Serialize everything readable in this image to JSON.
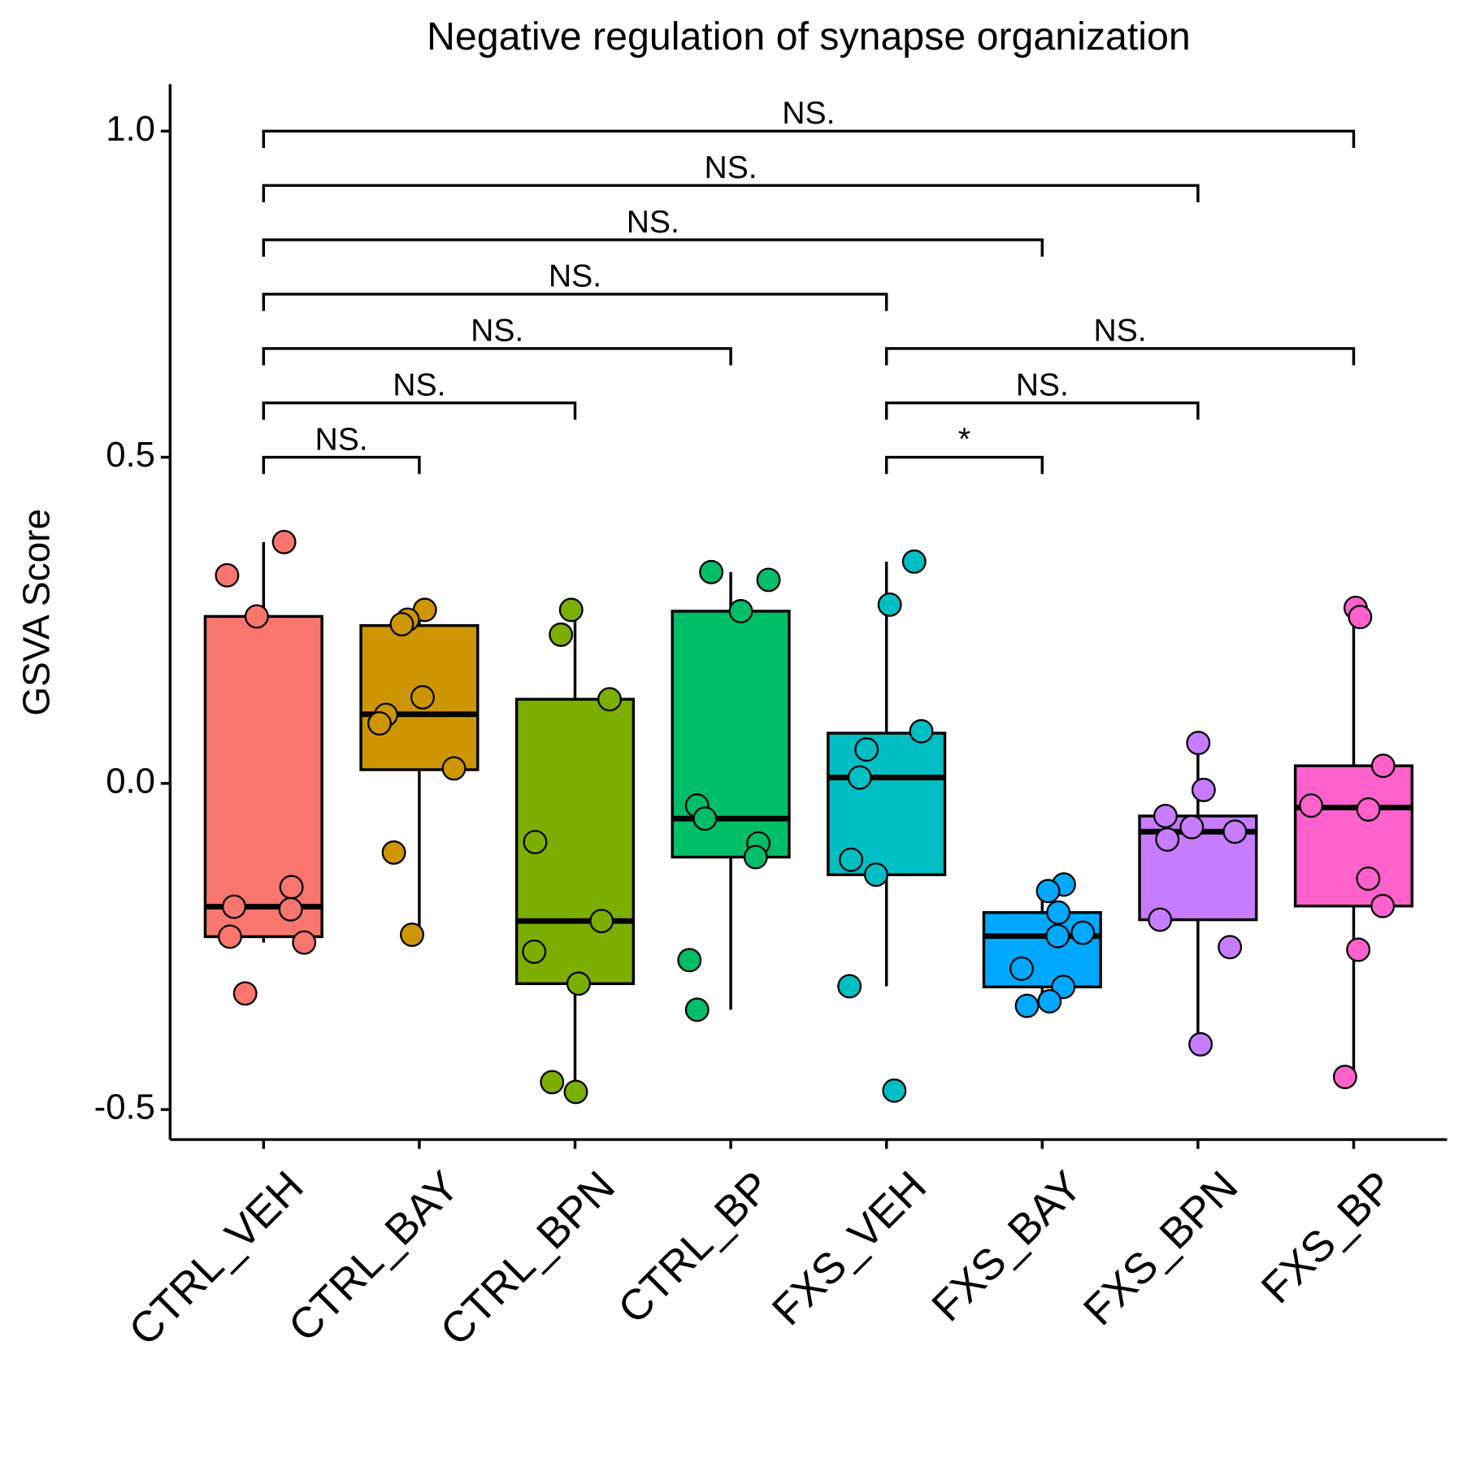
{
  "chart_data": {
    "type": "box",
    "title": "Negative regulation of synapse organization",
    "y_label": "GSVA Score",
    "categories": [
      "CTRL_VEH",
      "CTRL_BAY",
      "CTRL_BPN",
      "CTRL_BP",
      "FXS_VEH",
      "FXS_BAY",
      "FXS_BPN",
      "FXS_BP"
    ],
    "colors": [
      "#F8766D",
      "#CD9600",
      "#7CAE00",
      "#00BE67",
      "#00BFC4",
      "#00A9FF",
      "#C77CFF",
      "#FF61CC"
    ],
    "boxes": [
      {
        "whisker_low": -0.244,
        "q1": -0.235,
        "median": -0.189,
        "q3": 0.256,
        "whisker_high": 0.37
      },
      {
        "whisker_low": -0.232,
        "q1": 0.021,
        "median": 0.106,
        "q3": 0.242,
        "whisker_high": 0.262
      },
      {
        "whisker_low": -0.473,
        "q1": -0.307,
        "median": -0.211,
        "q3": 0.129,
        "whisker_high": 0.266
      },
      {
        "whisker_low": -0.347,
        "q1": -0.113,
        "median": -0.054,
        "q3": 0.264,
        "whisker_high": 0.324
      },
      {
        "whisker_low": -0.311,
        "q1": -0.14,
        "median": 0.009,
        "q3": 0.077,
        "whisker_high": 0.34
      },
      {
        "whisker_low": -0.34,
        "q1": -0.312,
        "median": -0.234,
        "q3": -0.198,
        "whisker_high": -0.155
      },
      {
        "whisker_low": -0.4,
        "q1": -0.209,
        "median": -0.074,
        "q3": -0.05,
        "whisker_high": 0.062
      },
      {
        "whisker_low": -0.45,
        "q1": -0.188,
        "median": -0.037,
        "q3": 0.027,
        "whisker_high": 0.269
      }
    ],
    "points": [
      [
        0.37,
        0.319,
        0.256,
        -0.159,
        -0.189,
        -0.193,
        -0.235,
        -0.244,
        -0.322
      ],
      [
        0.266,
        0.251,
        0.244,
        0.132,
        0.105,
        0.092,
        0.023,
        -0.106,
        -0.232
      ],
      [
        0.266,
        0.228,
        0.129,
        -0.09,
        -0.211,
        -0.258,
        -0.307,
        -0.458,
        -0.473
      ],
      [
        0.324,
        0.312,
        0.264,
        -0.034,
        -0.054,
        -0.092,
        -0.113,
        -0.271,
        -0.347
      ],
      [
        0.34,
        0.274,
        0.08,
        0.052,
        0.009,
        -0.117,
        -0.14,
        -0.311,
        -0.471
      ],
      [
        -0.155,
        -0.165,
        -0.198,
        -0.229,
        -0.234,
        -0.284,
        -0.312,
        -0.334,
        -0.341
      ],
      [
        0.062,
        -0.01,
        -0.05,
        -0.067,
        -0.074,
        -0.086,
        -0.209,
        -0.251,
        -0.4
      ],
      [
        0.269,
        0.255,
        0.027,
        -0.034,
        -0.04,
        -0.146,
        -0.188,
        -0.255,
        -0.45
      ]
    ],
    "comparisons": [
      {
        "groups": [
          "CTRL_VEH",
          "CTRL_BAY"
        ],
        "label": "NS."
      },
      {
        "groups": [
          "CTRL_VEH",
          "CTRL_BPN"
        ],
        "label": "NS."
      },
      {
        "groups": [
          "CTRL_VEH",
          "CTRL_BP"
        ],
        "label": "NS."
      },
      {
        "groups": [
          "CTRL_VEH",
          "FXS_VEH"
        ],
        "label": "NS."
      },
      {
        "groups": [
          "CTRL_VEH",
          "FXS_BAY"
        ],
        "label": "NS."
      },
      {
        "groups": [
          "CTRL_VEH",
          "FXS_BPN"
        ],
        "label": "NS."
      },
      {
        "groups": [
          "CTRL_VEH",
          "FXS_BP"
        ],
        "label": "NS."
      },
      {
        "groups": [
          "FXS_VEH",
          "FXS_BAY"
        ],
        "label": "*"
      },
      {
        "groups": [
          "FXS_VEH",
          "FXS_BPN"
        ],
        "label": "NS."
      },
      {
        "groups": [
          "FXS_VEH",
          "FXS_BP"
        ],
        "label": "NS."
      }
    ],
    "ylim": [
      -0.546,
      1.072
    ],
    "yticks": [
      {
        "value": -0.5,
        "label": "-0.5"
      },
      {
        "value": 0,
        "label": "0.0"
      },
      {
        "value": 0.5,
        "label": "0.5"
      },
      {
        "value": 1,
        "label": "1.0"
      }
    ]
  }
}
